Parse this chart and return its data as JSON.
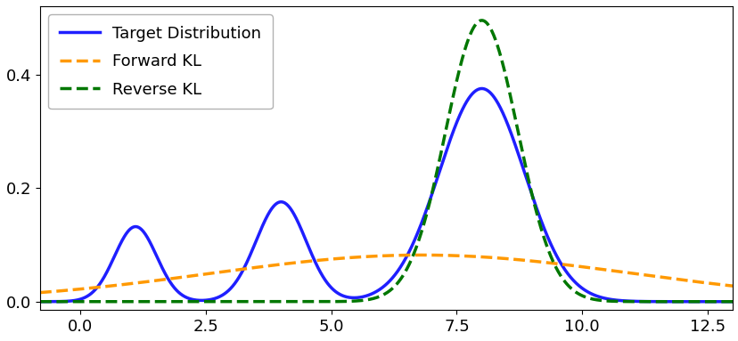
{
  "x_min": -1.0,
  "x_max": 13.0,
  "xlim": [
    -0.8,
    13.0
  ],
  "ylim": [
    -0.015,
    0.52
  ],
  "target_peaks": [
    {
      "mu": 1.1,
      "sigma": 0.42,
      "weight": 0.12
    },
    {
      "mu": 4.0,
      "sigma": 0.5,
      "weight": 0.19
    },
    {
      "mu": 8.0,
      "sigma": 0.85,
      "weight": 0.69
    }
  ],
  "target_peak_scale": 0.375,
  "forward_kl_mu": 6.8,
  "forward_kl_sigma": 4.2,
  "forward_kl_peak": 0.082,
  "reverse_kl_mu": 8.0,
  "reverse_kl_sigma": 0.72,
  "reverse_kl_peak": 0.495,
  "target_color": "#1f1fff",
  "forward_kl_color": "#ff9900",
  "reverse_kl_color": "#007700",
  "target_linewidth": 2.5,
  "forward_kl_linewidth": 2.5,
  "reverse_kl_linewidth": 2.5,
  "legend_labels": [
    "Target Distribution",
    "Forward KL",
    "Reverse KL"
  ],
  "xticks": [
    0.0,
    2.5,
    5.0,
    7.5,
    10.0,
    12.5
  ],
  "yticks": [
    0.0,
    0.2,
    0.4
  ],
  "n_points": 2000
}
